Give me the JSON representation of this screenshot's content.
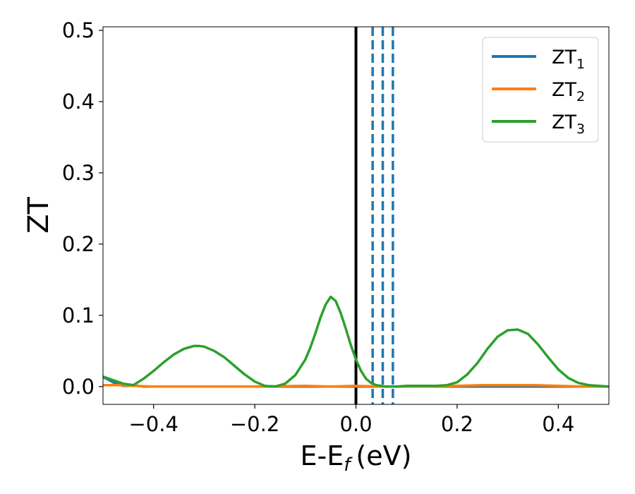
{
  "chart_data": {
    "type": "line",
    "xlabel": "E-E",
    "xlabel_sub": "f",
    "xlabel_unit": "(eV)",
    "ylabel": "ZT",
    "xlim": [
      -0.5,
      0.5
    ],
    "ylim": [
      -0.025,
      0.505
    ],
    "xticks": [
      -0.4,
      -0.2,
      0.0,
      0.2,
      0.4
    ],
    "xtick_labels": [
      "−0.4",
      "−0.2",
      "0.0",
      "0.2",
      "0.4"
    ],
    "yticks": [
      0.0,
      0.1,
      0.2,
      0.3,
      0.4,
      0.5
    ],
    "ytick_labels": [
      "0.0",
      "0.1",
      "0.2",
      "0.3",
      "0.4",
      "0.5"
    ],
    "legend_position": "top-right",
    "vertical_lines": [
      {
        "x": 0.0,
        "style": "solid",
        "color": "#000000"
      },
      {
        "x": 0.033,
        "style": "dashed",
        "color": "#1f77b4"
      },
      {
        "x": 0.053,
        "style": "dashed",
        "color": "#1f77b4"
      },
      {
        "x": 0.073,
        "style": "dashed",
        "color": "#1f77b4"
      }
    ],
    "series": [
      {
        "name": "ZT",
        "name_sub": "1",
        "color": "#1f77b4",
        "x": [
          -0.5,
          -0.49,
          -0.48,
          -0.47,
          -0.46,
          -0.45,
          -0.44,
          -0.43,
          -0.42,
          -0.4,
          -0.35,
          -0.3,
          -0.25,
          -0.2,
          -0.1,
          0.0,
          0.1,
          0.2,
          0.3,
          0.4,
          0.5
        ],
        "y": [
          0.013,
          0.01,
          0.006,
          0.003,
          0.001,
          0.001,
          0.002,
          0.001,
          0.0,
          0.0,
          0.0,
          0.0,
          0.0,
          0.0,
          0.0,
          0.0,
          0.0,
          0.0,
          0.0,
          0.0,
          0.0
        ]
      },
      {
        "name": "ZT",
        "name_sub": "2",
        "color": "#ff7f0e",
        "x": [
          -0.5,
          -0.47,
          -0.44,
          -0.4,
          -0.3,
          -0.2,
          -0.1,
          -0.05,
          0.0,
          0.05,
          0.1,
          0.15,
          0.2,
          0.25,
          0.3,
          0.35,
          0.4,
          0.45,
          0.5
        ],
        "y": [
          0.002,
          0.002,
          0.001,
          0.0,
          0.0,
          0.0,
          0.001,
          0.0,
          0.001,
          0.0,
          0.0,
          0.0,
          0.001,
          0.002,
          0.002,
          0.002,
          0.001,
          0.0,
          0.0
        ]
      },
      {
        "name": "ZT",
        "name_sub": "3",
        "color": "#2ca02c",
        "x": [
          -0.5,
          -0.48,
          -0.46,
          -0.44,
          -0.42,
          -0.4,
          -0.38,
          -0.36,
          -0.34,
          -0.32,
          -0.31,
          -0.3,
          -0.28,
          -0.26,
          -0.24,
          -0.22,
          -0.2,
          -0.18,
          -0.16,
          -0.14,
          -0.12,
          -0.1,
          -0.09,
          -0.08,
          -0.07,
          -0.06,
          -0.05,
          -0.04,
          -0.03,
          -0.02,
          -0.01,
          0.0,
          0.01,
          0.02,
          0.03,
          0.04,
          0.05,
          0.06,
          0.08,
          0.1,
          0.12,
          0.14,
          0.16,
          0.18,
          0.2,
          0.22,
          0.24,
          0.26,
          0.28,
          0.3,
          0.32,
          0.34,
          0.36,
          0.38,
          0.4,
          0.42,
          0.44,
          0.46,
          0.48,
          0.5
        ],
        "y": [
          0.014,
          0.009,
          0.004,
          0.002,
          0.011,
          0.022,
          0.034,
          0.045,
          0.053,
          0.057,
          0.057,
          0.056,
          0.05,
          0.041,
          0.029,
          0.017,
          0.007,
          0.001,
          0.0,
          0.004,
          0.016,
          0.038,
          0.055,
          0.075,
          0.097,
          0.115,
          0.126,
          0.12,
          0.103,
          0.081,
          0.058,
          0.038,
          0.022,
          0.011,
          0.005,
          0.002,
          0.001,
          0.0,
          0.0,
          0.001,
          0.001,
          0.001,
          0.001,
          0.002,
          0.006,
          0.017,
          0.033,
          0.053,
          0.07,
          0.079,
          0.08,
          0.074,
          0.059,
          0.041,
          0.024,
          0.012,
          0.005,
          0.002,
          0.001,
          0.0
        ]
      }
    ]
  }
}
